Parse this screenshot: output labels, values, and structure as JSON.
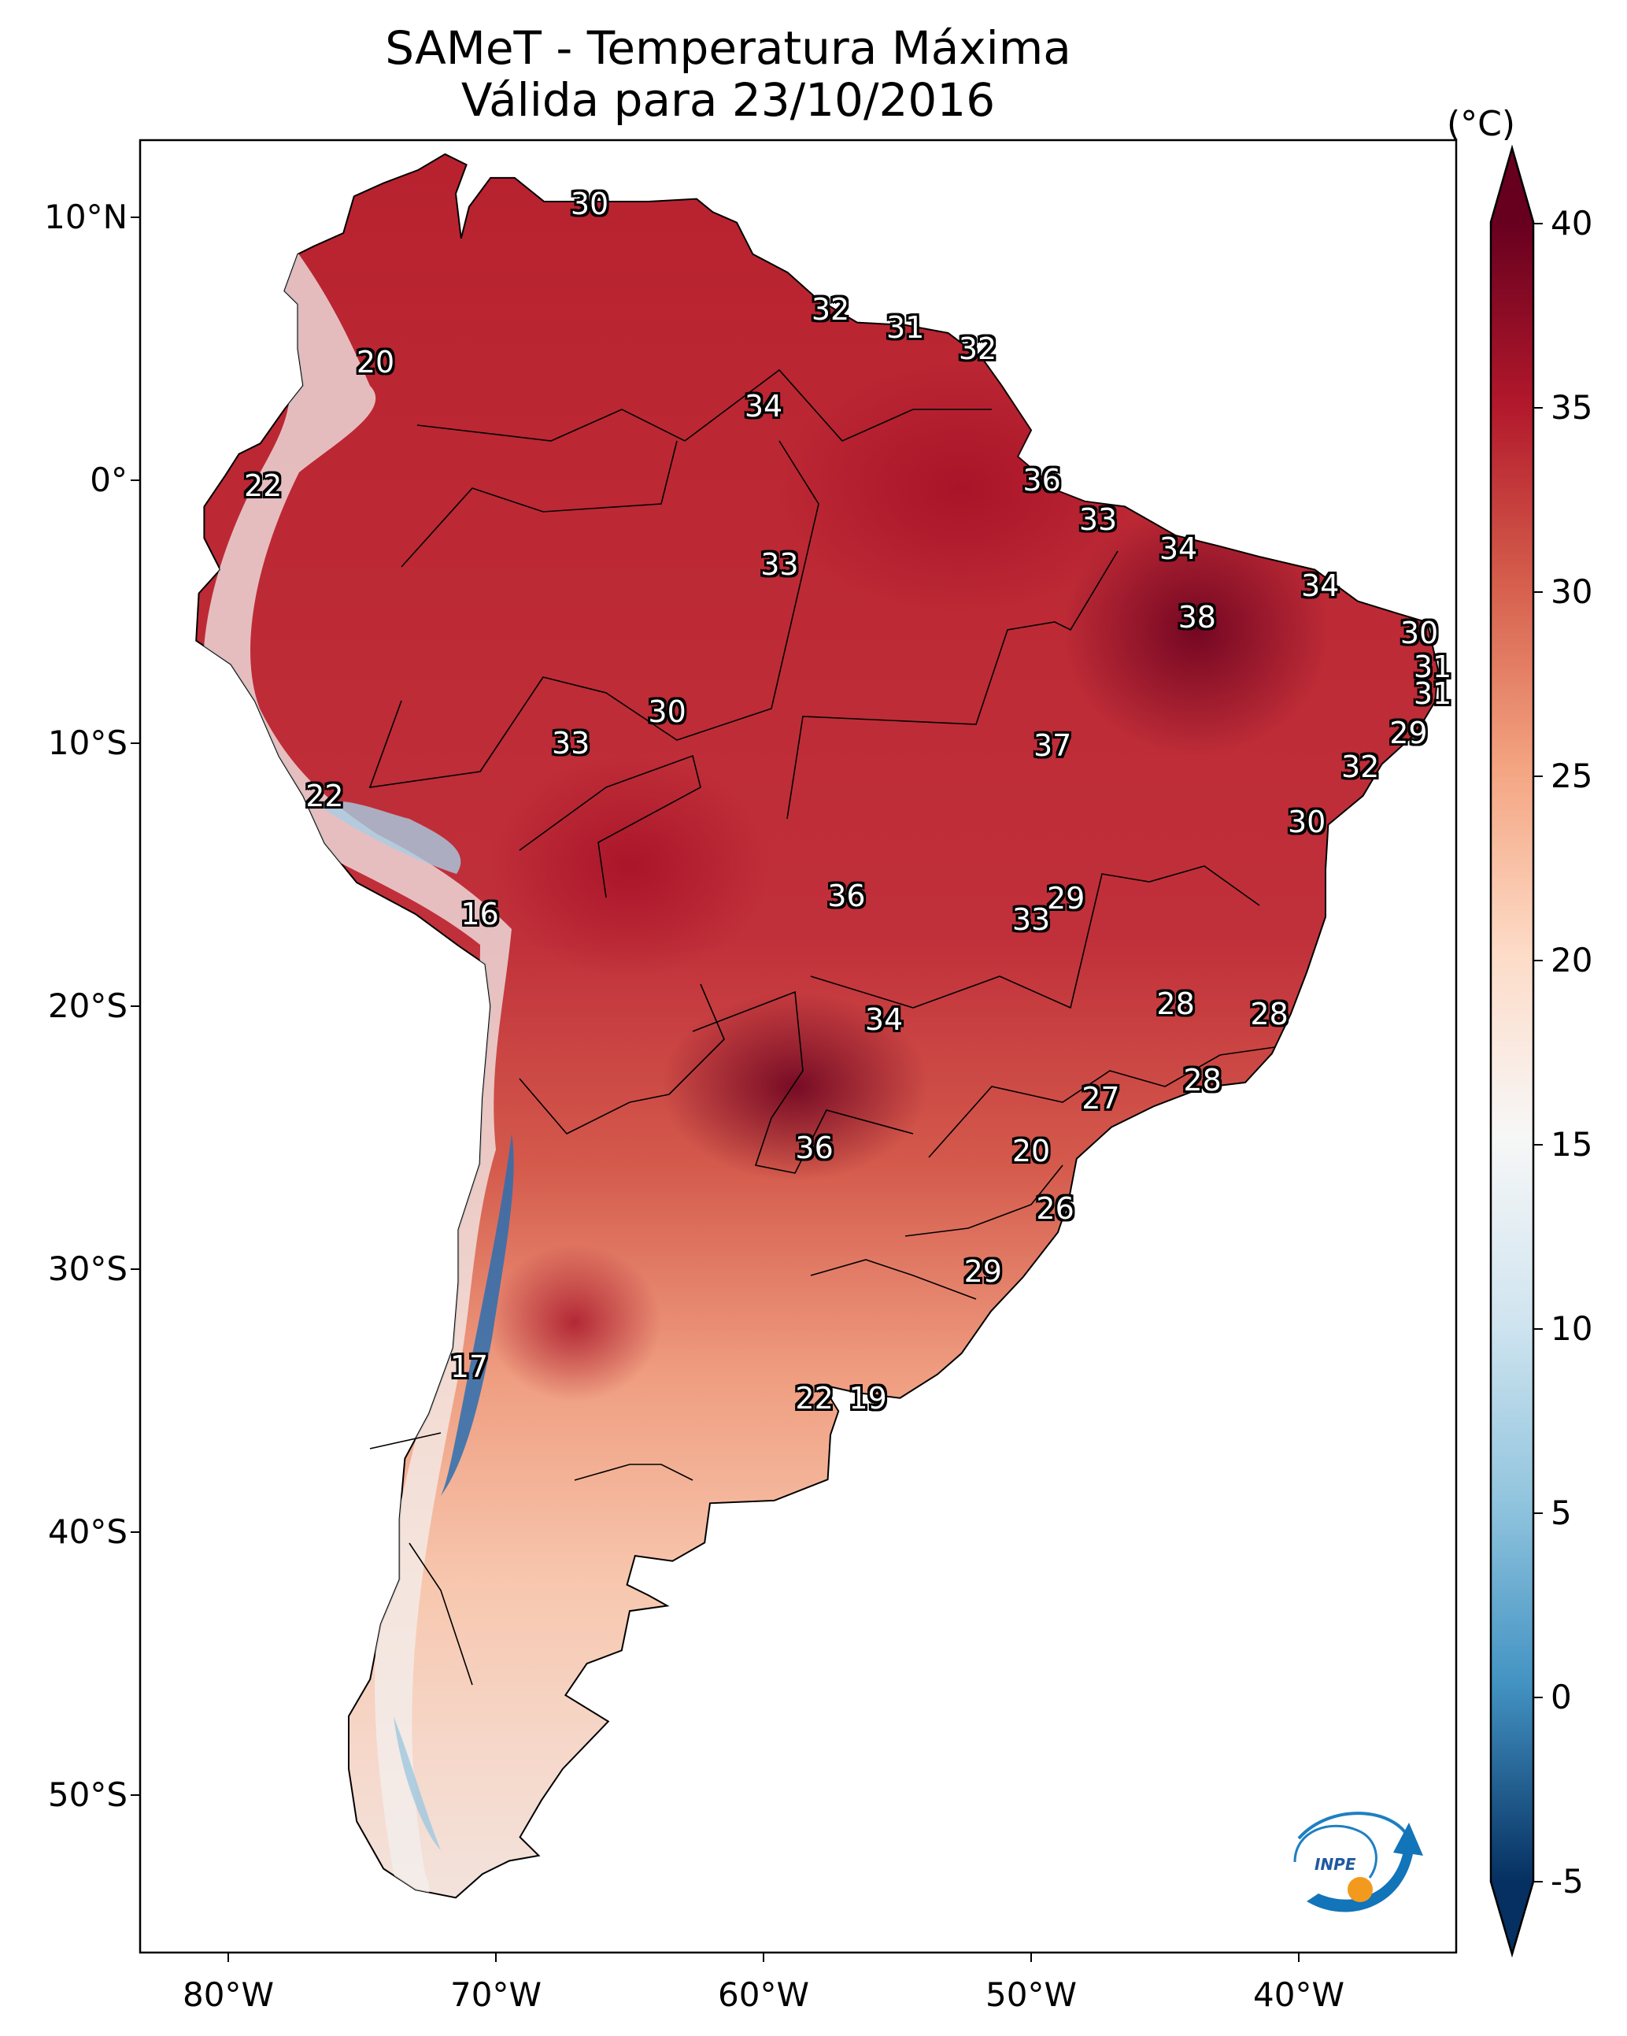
{
  "title": {
    "line1": "SAMeT - Temperatura Máxima",
    "line2": "Válida para 23/10/2016"
  },
  "colorbar": {
    "unit": "(°C)",
    "ticks": [
      "40",
      "35",
      "30",
      "25",
      "20",
      "15",
      "10",
      "5",
      "0",
      "-5"
    ],
    "colormap": "RdBu_r",
    "range": [
      -5,
      40
    ],
    "extend": "both",
    "colors": {
      "max": "#67001f",
      "hot": "#b2182b",
      "warm": "#d6604d",
      "mild": "#f4a582",
      "neutral": "#f7f7f7",
      "cool": "#92c5de",
      "cold": "#2166ac",
      "min": "#053061"
    }
  },
  "axes": {
    "lat_labels": [
      "10°N",
      "0°",
      "10°S",
      "20°S",
      "30°S",
      "40°S",
      "50°S"
    ],
    "lon_labels": [
      "80°W",
      "70°W",
      "60°W",
      "50°W",
      "40°W"
    ],
    "lon_range": [
      -83,
      -34
    ],
    "lat_range": [
      -56,
      13
    ]
  },
  "temperature_labels": [
    {
      "text": "30",
      "lon": -66.5,
      "lat": 10.5
    },
    {
      "text": "32",
      "lon": -57.5,
      "lat": 6.5
    },
    {
      "text": "31",
      "lon": -54.7,
      "lat": 5.8
    },
    {
      "text": "32",
      "lon": -52.0,
      "lat": 5.0
    },
    {
      "text": "20",
      "lon": -74.5,
      "lat": 4.5
    },
    {
      "text": "34",
      "lon": -60.0,
      "lat": 2.8
    },
    {
      "text": "36",
      "lon": -49.6,
      "lat": 0.0
    },
    {
      "text": "22",
      "lon": -78.7,
      "lat": -0.2
    },
    {
      "text": "33",
      "lon": -47.5,
      "lat": -1.5
    },
    {
      "text": "34",
      "lon": -44.5,
      "lat": -2.6
    },
    {
      "text": "33",
      "lon": -59.4,
      "lat": -3.2
    },
    {
      "text": "34",
      "lon": -39.2,
      "lat": -4.0
    },
    {
      "text": "38",
      "lon": -43.8,
      "lat": -5.2
    },
    {
      "text": "30",
      "lon": -35.5,
      "lat": -5.8
    },
    {
      "text": "31",
      "lon": -35.0,
      "lat": -7.1
    },
    {
      "text": "31",
      "lon": -35.0,
      "lat": -8.1
    },
    {
      "text": "30",
      "lon": -63.6,
      "lat": -8.8
    },
    {
      "text": "29",
      "lon": -35.9,
      "lat": -9.6
    },
    {
      "text": "33",
      "lon": -67.2,
      "lat": -10.0
    },
    {
      "text": "37",
      "lon": -49.2,
      "lat": -10.1
    },
    {
      "text": "32",
      "lon": -37.7,
      "lat": -10.9
    },
    {
      "text": "22",
      "lon": -76.4,
      "lat": -12.0
    },
    {
      "text": "30",
      "lon": -39.7,
      "lat": -13.0
    },
    {
      "text": "36",
      "lon": -56.9,
      "lat": -15.8
    },
    {
      "text": "29",
      "lon": -48.7,
      "lat": -15.9
    },
    {
      "text": "33",
      "lon": -50.0,
      "lat": -16.7
    },
    {
      "text": "16",
      "lon": -70.6,
      "lat": -16.5
    },
    {
      "text": "28",
      "lon": -44.6,
      "lat": -19.9
    },
    {
      "text": "28",
      "lon": -41.1,
      "lat": -20.3
    },
    {
      "text": "34",
      "lon": -55.5,
      "lat": -20.5
    },
    {
      "text": "28",
      "lon": -43.6,
      "lat": -22.8
    },
    {
      "text": "27",
      "lon": -47.4,
      "lat": -23.5
    },
    {
      "text": "36",
      "lon": -58.1,
      "lat": -25.4
    },
    {
      "text": "20",
      "lon": -50.0,
      "lat": -25.5
    },
    {
      "text": "26",
      "lon": -49.1,
      "lat": -27.7
    },
    {
      "text": "29",
      "lon": -51.8,
      "lat": -30.1
    },
    {
      "text": "17",
      "lon": -71.0,
      "lat": -33.7
    },
    {
      "text": "22",
      "lon": -58.1,
      "lat": -34.9
    },
    {
      "text": "19",
      "lon": -56.1,
      "lat": -34.9
    }
  ],
  "logo": {
    "text": "INPE"
  }
}
